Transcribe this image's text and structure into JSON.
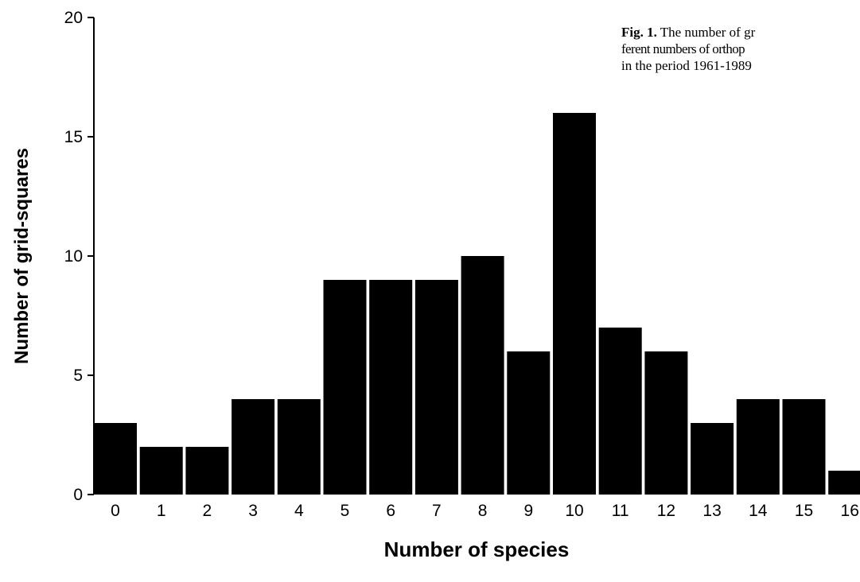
{
  "caption": {
    "label": "Fig. 1.",
    "lines": [
      " The number of gr",
      "ferent numbers of orthop",
      "in the period 1961-1989"
    ]
  },
  "chart_data": {
    "type": "bar",
    "xlabel": "Number of species",
    "ylabel": "Number of grid-squares",
    "ylim": [
      0,
      20
    ],
    "yticks": [
      0,
      5,
      10,
      15,
      20
    ],
    "categories": [
      "0",
      "1",
      "2",
      "3",
      "4",
      "5",
      "6",
      "7",
      "8",
      "9",
      "10",
      "11",
      "12",
      "13",
      "14",
      "15",
      "16"
    ],
    "values": [
      3,
      2,
      2,
      4,
      4,
      9,
      9,
      9,
      10,
      6,
      16,
      7,
      6,
      3,
      4,
      4,
      1
    ],
    "bar_color": "#000000",
    "grid": false
  }
}
